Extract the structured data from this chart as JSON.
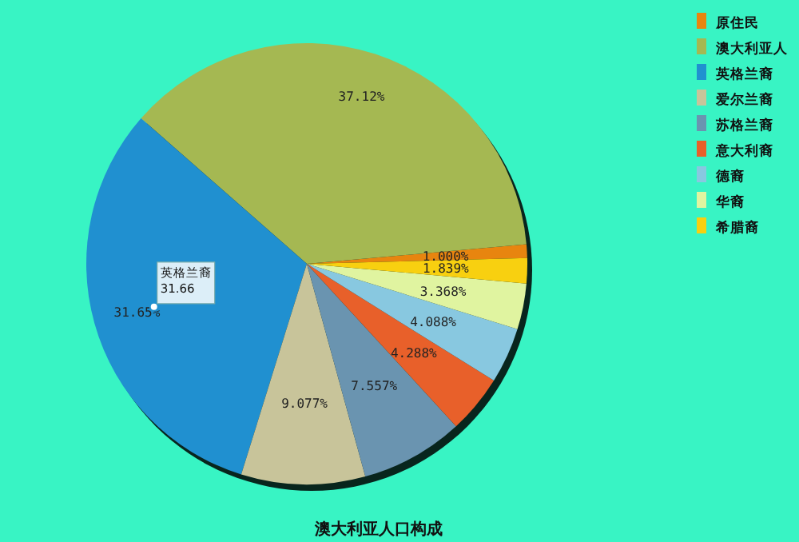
{
  "chart_data": {
    "type": "pie",
    "title": "澳大利亚人口构成",
    "categories": [
      "原住民",
      "澳大利亚人",
      "英格兰裔",
      "爱尔兰裔",
      "苏格兰裔",
      "意大利裔",
      "德裔",
      "华裔",
      "希腊裔"
    ],
    "values": [
      1.0,
      37.12,
      31.65,
      9.077,
      7.557,
      4.288,
      4.088,
      3.368,
      1.839
    ],
    "value_labels": [
      "1.000%",
      "37.12%",
      "31.65%",
      "9.077%",
      "7.557%",
      "4.288%",
      "4.088%",
      "3.368%",
      "1.839%"
    ],
    "colors": [
      "#e8850f",
      "#a5b852",
      "#2090d0",
      "#c8c49a",
      "#6a94b0",
      "#e8602a",
      "#88c8e0",
      "#e0f4a0",
      "#f8d010"
    ],
    "annotations": [
      {
        "text": "英格兰裔\n31.66",
        "x": "英格兰裔"
      }
    ],
    "legend": "top right"
  }
}
